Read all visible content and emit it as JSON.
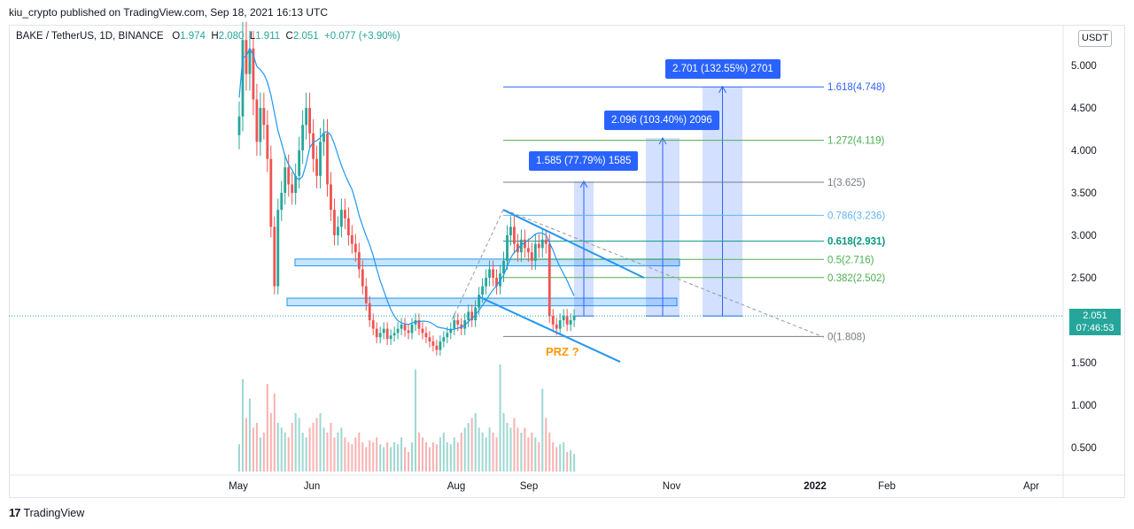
{
  "publish_line": "kiu_crypto published on TradingView.com, Sep 18, 2021 16:13 UTC",
  "header": {
    "symbol": "BAKE / TetherUS, 1D, BINANCE",
    "o_label": "O",
    "o_value": "1.974",
    "h_label": "H",
    "h_value": "2.080",
    "l_label": "L",
    "l_value": "1.911",
    "c_label": "C",
    "c_value": "2.051",
    "change": "+0.077 (+3.90%)"
  },
  "currency": "USDT",
  "last_price": {
    "price": "2.051",
    "countdown": "07:46:53"
  },
  "prz_label": "PRZ ?",
  "targets": [
    {
      "label": "1.585 (77.79%) 1585"
    },
    {
      "label": "2.096 (103.40%) 2096"
    },
    {
      "label": "2.701 (132.55%) 2701"
    }
  ],
  "footer": {
    "logo": "17",
    "brand": "TradingView"
  },
  "colors": {
    "up": "#26a69a",
    "down": "#ef5350",
    "accent": "#2962ff",
    "ma": "#2196f3",
    "prz": "#ff9800"
  },
  "chart_data": {
    "type": "candlestick",
    "symbol": "BAKE/USDT",
    "interval": "1D",
    "y_ticks": [
      "5.000",
      "4.500",
      "4.000",
      "3.500",
      "3.000",
      "2.500",
      "2.000",
      "1.500",
      "1.000",
      "0.500"
    ],
    "ylim": [
      0.3,
      5.7
    ],
    "x_ticks": [
      "May",
      "Jun",
      "Aug",
      "Sep",
      "Nov",
      "2022",
      "Feb",
      "Apr"
    ],
    "fib_levels": [
      {
        "label": "1.618(4.748)",
        "price": 4.748,
        "color": "#2962ff"
      },
      {
        "label": "1.272(4.119)",
        "price": 4.119,
        "color": "#4caf50"
      },
      {
        "label": "1(3.625)",
        "price": 3.625,
        "color": "#787b86"
      },
      {
        "label": "0.786(3.236)",
        "price": 3.236,
        "color": "#64b5f6"
      },
      {
        "label": "0.618(2.931)",
        "price": 2.931,
        "color": "#089981"
      },
      {
        "label": "0.5(2.716)",
        "price": 2.716,
        "color": "#4caf50"
      },
      {
        "label": "0.382(2.502)",
        "price": 2.502,
        "color": "#4caf50"
      },
      {
        "label": "0(1.808)",
        "price": 1.808,
        "color": "#787b86"
      }
    ],
    "support_zones": [
      [
        2.64,
        2.72
      ],
      [
        2.17,
        2.26
      ]
    ],
    "targets": [
      {
        "from": 2.05,
        "to": 3.636,
        "label": "1.585 (77.79%) 1585"
      },
      {
        "from": 2.05,
        "to": 4.146,
        "label": "2.096 (103.40%) 2096"
      },
      {
        "from": 2.05,
        "to": 4.751,
        "label": "2.701 (132.55%) 2701"
      }
    ],
    "closes": [
      4.4,
      5.3,
      4.9,
      5.2,
      4.6,
      4.1,
      4.5,
      4.3,
      3.9,
      3.1,
      2.4,
      3.3,
      3.5,
      3.8,
      3.6,
      3.5,
      3.7,
      4.0,
      4.3,
      4.5,
      4.2,
      3.9,
      3.7,
      4.1,
      4.2,
      3.6,
      3.3,
      3.0,
      3.1,
      3.3,
      3.2,
      3.0,
      2.9,
      2.8,
      2.6,
      2.4,
      2.2,
      2.0,
      1.9,
      1.8,
      1.85,
      1.9,
      1.78,
      1.82,
      1.85,
      1.9,
      1.95,
      1.88,
      1.85,
      1.95,
      2.0,
      1.9,
      1.85,
      1.8,
      1.75,
      1.7,
      1.65,
      1.75,
      1.8,
      1.85,
      1.9,
      2.0,
      1.95,
      1.9,
      2.0,
      2.1,
      2.0,
      2.15,
      2.3,
      2.4,
      2.5,
      2.6,
      2.5,
      2.4,
      2.55,
      2.7,
      3.0,
      3.1,
      2.9,
      2.8,
      2.95,
      2.85,
      2.8,
      2.7,
      2.9,
      2.85,
      2.95,
      2.9,
      2.05,
      1.95,
      1.9,
      2.0,
      2.05,
      1.95,
      2.0,
      2.05
    ],
    "volumes": [
      0.28,
      0.95,
      0.55,
      0.75,
      0.45,
      0.5,
      0.35,
      0.4,
      0.9,
      0.6,
      0.8,
      0.5,
      0.45,
      0.4,
      0.35,
      0.5,
      0.6,
      0.55,
      0.4,
      0.35,
      0.45,
      0.5,
      0.55,
      0.6,
      0.45,
      0.4,
      0.5,
      0.35,
      0.4,
      0.45,
      0.35,
      0.3,
      0.28,
      0.35,
      0.4,
      0.3,
      0.25,
      0.32,
      0.3,
      0.35,
      0.28,
      0.25,
      0.3,
      0.25,
      0.3,
      0.28,
      0.35,
      0.25,
      0.2,
      0.3,
      1.05,
      0.4,
      0.35,
      0.3,
      0.25,
      0.3,
      0.28,
      0.35,
      0.4,
      0.3,
      0.28,
      0.35,
      0.3,
      0.4,
      0.45,
      0.5,
      0.55,
      0.6,
      0.45,
      0.4,
      0.35,
      0.45,
      0.4,
      0.35,
      1.1,
      0.6,
      0.5,
      0.45,
      0.55,
      0.45,
      0.4,
      0.45,
      0.35,
      0.4,
      0.35,
      0.3,
      0.85,
      0.55,
      0.4,
      0.3,
      0.25,
      0.28,
      0.3,
      0.2,
      0.22,
      0.18
    ]
  }
}
